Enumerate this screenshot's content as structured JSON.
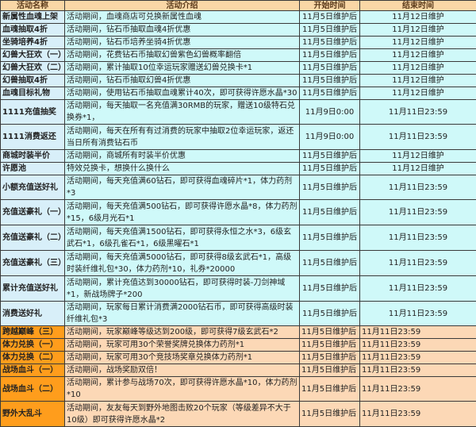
{
  "headers": [
    "活动名称",
    "活动介绍",
    "开始时间",
    "结束时间"
  ],
  "colors": {
    "header": "#fad7a6",
    "cyan_row": "#cff9f9",
    "orange_name": "#ff9d1c",
    "orange_row": "#fcd8b6"
  },
  "rows": [
    {
      "name": "新属性血魂上架",
      "intro": "活动期间，血魂商店可兑换新属性血魂",
      "start": "11月5日维护后",
      "end": "11月12日维护",
      "style": "cyan",
      "lines": 1
    },
    {
      "name": "血魂抽取4折",
      "intro": "活动期间，钻石币抽取血魂4折优惠",
      "start": "11月5日维护后",
      "end": "11月12日维护",
      "style": "cyan",
      "lines": 1
    },
    {
      "name": "坐骑培养4折",
      "intro": "活动期间，钻石币培养坐骑4折优惠",
      "start": "11月5日维护后",
      "end": "11月12日维护",
      "style": "cyan",
      "lines": 1
    },
    {
      "name": "幻兽大狂欢（一）",
      "intro": "活动期间，花费钻石币抽取幻兽紫色幻兽概率翻倍",
      "start": "11月5日维护后",
      "end": "11月12日维护",
      "style": "cyan",
      "lines": 1
    },
    {
      "name": "幻兽大狂欢（二）",
      "intro": "活动期间，累计抽取10位幸运玩家赠送幻兽兑换卡*1",
      "start": "11月5日维护后",
      "end": "11月12日维护",
      "style": "cyan",
      "lines": 1
    },
    {
      "name": "幻兽抽取4折",
      "intro": "活动期间，钻石币抽取幻兽4折优惠",
      "start": "11月5日维护后",
      "end": "11月12日维护",
      "style": "cyan",
      "lines": 1
    },
    {
      "name": "血魂目标礼物",
      "intro": "活动期间，使用钻石币抽取血魂累计40次，即可获得许愿水晶*30",
      "start": "11月5日维护后",
      "end": "11月12日维护",
      "style": "cyan",
      "lines": 1
    },
    {
      "name": "1111充值抽奖",
      "intro": "活动期间，每天抽取一名充值满30RMB的玩家，赠送10级特石兑换券*1，",
      "start": "11月9日0:00",
      "end": "11月11日23:59",
      "style": "cyan",
      "lines": 1
    },
    {
      "name": "1111消费返还",
      "intro": "活动期间，每天在所有有过消费的玩家中抽取2位幸运玩家，返还当日所有消费钻石币",
      "start": "11月9日0:00",
      "end": "11月11日23:59",
      "style": "cyan",
      "lines": 2
    },
    {
      "name": "商城时装半价",
      "intro": "活动期间，商城所有时装半价优惠",
      "start": "11月5日维护后",
      "end": "11月12日维护",
      "style": "cyan",
      "lines": 1
    },
    {
      "name": "许愿池",
      "intro": "特效兑换卡，想换什么换什么",
      "start": "11月5日维护后",
      "end": "11月12日维护",
      "style": "cyan",
      "lines": 1
    },
    {
      "name": "小额充值送好礼",
      "intro": "活动期间，每天充值满60钻石，即可获得血魂碎片*1，体力药剂*3",
      "start": "11月5日维护后",
      "end": "11月11日23:59",
      "style": "cyan",
      "lines": 1
    },
    {
      "name": "充值送豪礼（一）",
      "intro": "活动期间，每天充值满500钻石，即可获得许愿水晶*8，体力药剂*15，6级月光石*1",
      "start": "11月5日维护后",
      "end": "11月11日23:59",
      "style": "cyan",
      "lines": 2
    },
    {
      "name": "充值送豪礼（二）",
      "intro": "活动期间，每天充值满1500钻石，即可获得永恒之水*3，6级玄武石*1，6级孔雀石*1，6级黑曜石*1",
      "start": "11月5日维护后",
      "end": "11月11日23:59",
      "style": "cyan",
      "lines": 2
    },
    {
      "name": "充值送豪礼（三）",
      "intro": "活动期间，每天充值满5000钻石，即可获得8级玄武石*1，高级时装纤维礼包*30，体力药剂*10，礼券*20000",
      "start": "11月5日维护后",
      "end": "11月11日23:59",
      "style": "cyan",
      "lines": 2
    },
    {
      "name": "累计充值送好礼",
      "intro": "活动期间，累计充值达到30000钻石，即可获得时装-刀剑神域*1，新战场牌子*200",
      "start": "11月5日维护后",
      "end": "11月11日23:59",
      "style": "cyan",
      "lines": 2
    },
    {
      "name": "消费送好礼",
      "intro": "活动期间，玩家每日累计消费满2000钻石币，即可获得高级时装纤维礼包*3",
      "start": "11月5日维护后",
      "end": "11月11日23:59",
      "style": "cyan",
      "lines": 1
    },
    {
      "name": "跨越巅峰（三）",
      "intro": "活动期间，玩家巅峰等级达到200级，即可获得7级玄武石*2",
      "start": "11月5日维护后",
      "end": "11月11日23:59",
      "style": "orange",
      "lines": 1
    },
    {
      "name": "体力兑换（一）",
      "intro": "活动期间，玩家可用30个荣誉奖牌兑换体力药剂*1",
      "start": "11月5日维护后",
      "end": "11月11日23:59",
      "style": "orange",
      "lines": 1
    },
    {
      "name": "体力兑换（二）",
      "intro": "活动期间，玩家可用30个竞技场奖章兑换体力药剂*1",
      "start": "11月5日维护后",
      "end": "11月11日23:59",
      "style": "orange",
      "lines": 1
    },
    {
      "name": "战场血斗（一）",
      "intro": "活动期间，战场奖励双倍！",
      "start": "11月5日维护后",
      "end": "11月11日23:59",
      "style": "orange",
      "lines": 1
    },
    {
      "name": "战场血斗（二）",
      "intro": "活动期间，累计参与战场70次，即可获得许愿水晶*10，体力药剂*10",
      "start": "11月5日维护后",
      "end": "11月11日23:59",
      "style": "orange",
      "lines": 1
    },
    {
      "name": "野外大乱斗",
      "intro": "活动期间，友友每天到野外地图击败20个玩家（等级差异不大于10级）即可获得许愿水晶*2",
      "start": "11月5日维护后",
      "end": "11月11日23:59",
      "style": "orange",
      "lines": 2
    }
  ]
}
